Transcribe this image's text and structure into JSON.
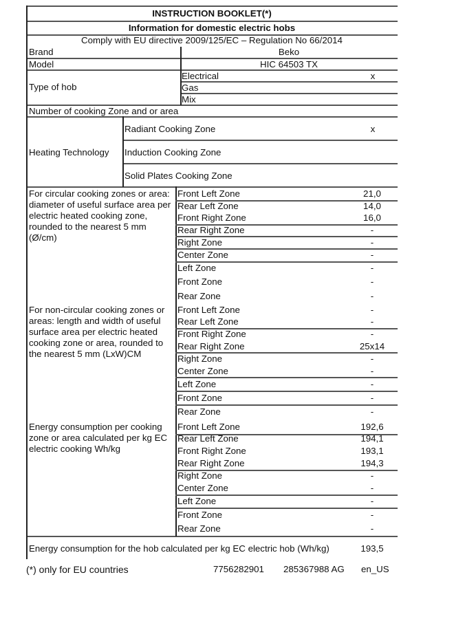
{
  "title": "INSTRUCTION BOOKLET(*)",
  "subtitle": "Information for domestic electric hobs",
  "directive": "Comply with EU directive 2009/125/EC – Regulation No 66/2014",
  "brand": {
    "label": "Brand",
    "value": "Beko"
  },
  "model": {
    "label": "Model",
    "value": "HIC 64503 TX"
  },
  "type_of_hob": {
    "label": "Type of hob",
    "options": [
      {
        "name": "Electrical",
        "mark": "x"
      },
      {
        "name": "Gas",
        "mark": ""
      },
      {
        "name": "Mix",
        "mark": ""
      }
    ]
  },
  "number_of_zones": {
    "label": "Number of cooking Zone and or area"
  },
  "heating_technology": {
    "label": "Heating Technology",
    "options": [
      {
        "name": "Radiant Cooking Zone",
        "mark": "x"
      },
      {
        "name": "Induction Cooking Zone",
        "mark": ""
      },
      {
        "name": "Solid Plates Cooking Zone",
        "mark": ""
      }
    ]
  },
  "sections": [
    {
      "label": "For circular cooking zones or area: diameter of useful surface area per electric heated cooking zone, rounded to the nearest 5 mm (Ø/cm)",
      "rows": [
        {
          "zone": "Front Left Zone",
          "value": "21,0"
        },
        {
          "zone": "Rear Left Zone",
          "value": "14,0"
        },
        {
          "zone": "Front Right Zone",
          "value": "16,0"
        },
        {
          "zone": "Rear Right Zone",
          "value": "-"
        },
        {
          "zone": "Right Zone",
          "value": "-"
        },
        {
          "zone": "Center Zone",
          "value": "-"
        },
        {
          "zone": "Left Zone",
          "value": "-"
        },
        {
          "zone": "Front Zone",
          "value": "-"
        },
        {
          "zone": "Rear Zone",
          "value": "-"
        }
      ]
    },
    {
      "label": "For non-circular cooking zones or areas: length and width of useful surface area per electric heated cooking zone or area, rounded to the nearest 5 mm (LxW)CM",
      "rows": [
        {
          "zone": "Front Left Zone",
          "value": "-"
        },
        {
          "zone": "Rear Left Zone",
          "value": "-"
        },
        {
          "zone": "Front Right Zone",
          "value": "-"
        },
        {
          "zone": "Rear Right Zone",
          "value": "25x14"
        },
        {
          "zone": "Right Zone",
          "value": "-"
        },
        {
          "zone": "Center Zone",
          "value": "-"
        },
        {
          "zone": "Left Zone",
          "value": "-"
        },
        {
          "zone": "Front Zone",
          "value": "-"
        },
        {
          "zone": "Rear Zone",
          "value": "-"
        }
      ]
    },
    {
      "label": "Energy consumption per cooking zone or area calculated per kg EC electric cooking Wh/kg",
      "rows": [
        {
          "zone": "Front Left Zone",
          "value": "192,6"
        },
        {
          "zone": "Rear Left Zone",
          "value": "194,1"
        },
        {
          "zone": "Front Right Zone",
          "value": "193,1"
        },
        {
          "zone": "Rear Right Zone",
          "value": "194,3"
        },
        {
          "zone": "Right Zone",
          "value": "-"
        },
        {
          "zone": "Center Zone",
          "value": "-"
        },
        {
          "zone": "Left Zone",
          "value": "-"
        },
        {
          "zone": "Front Zone",
          "value": "-"
        },
        {
          "zone": "Rear Zone",
          "value": "-"
        }
      ]
    }
  ],
  "total": {
    "label": "Energy consumption for the hob calculated per kg EC electric hob (Wh/kg)",
    "value": "193,5"
  },
  "footer": {
    "note": "(*) only for EU countries",
    "code1": "7756282901",
    "code2": "285367988 AG",
    "locale": "en_US"
  }
}
